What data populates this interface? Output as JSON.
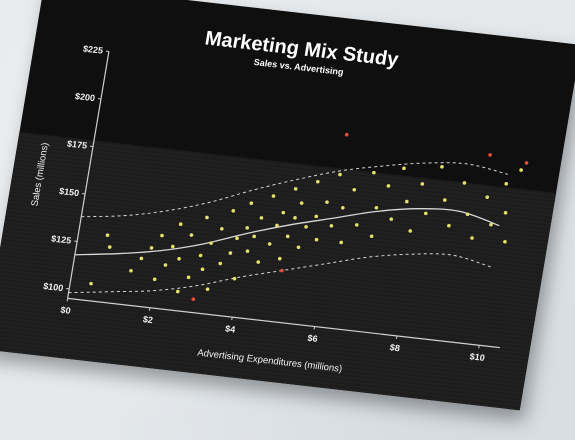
{
  "chart_data": {
    "type": "scatter",
    "title": "Marketing Mix Study",
    "subtitle": "Sales vs. Advertising",
    "xlabel": "Advertising Expenditures (millions)",
    "ylabel": "Sales (millions)",
    "xlim": [
      0,
      10.5
    ],
    "ylim": [
      95,
      225
    ],
    "x_ticks": [
      {
        "value": 0,
        "label": "$0"
      },
      {
        "value": 2,
        "label": "$2"
      },
      {
        "value": 4,
        "label": "$4"
      },
      {
        "value": 6,
        "label": "$6"
      },
      {
        "value": 8,
        "label": "$8"
      },
      {
        "value": 10,
        "label": "$10"
      }
    ],
    "y_ticks": [
      {
        "value": 100,
        "label": "$100"
      },
      {
        "value": 125,
        "label": "$125"
      },
      {
        "value": 150,
        "label": "$150"
      },
      {
        "value": 175,
        "label": "$175"
      },
      {
        "value": 200,
        "label": "$200"
      },
      {
        "value": 225,
        "label": "$225"
      }
    ],
    "grid": false,
    "colors": {
      "points": "#e6e06a",
      "outliers": "#e0503a",
      "fit": "#d8d8d8",
      "band": "#d8d8d8",
      "background": "#1c1c1c"
    },
    "fit_line": {
      "x": [
        0,
        1,
        2,
        3,
        4,
        5,
        6,
        7,
        8,
        9,
        10
      ],
      "y": [
        118,
        121,
        125,
        131,
        139,
        146,
        152,
        158,
        162,
        163,
        158
      ]
    },
    "upper_band": {
      "x": [
        0,
        1,
        2,
        3,
        4,
        5,
        6,
        7,
        8,
        9,
        10
      ],
      "y": [
        138,
        141,
        146,
        153,
        162,
        170,
        177,
        182,
        186,
        188,
        185
      ]
    },
    "lower_band": {
      "x": [
        0,
        1,
        2,
        3,
        4,
        5,
        6,
        7,
        8,
        9,
        10
      ],
      "y": [
        98,
        101,
        104,
        109,
        116,
        122,
        128,
        134,
        138,
        140,
        136
      ]
    },
    "points": [
      {
        "x": 0.5,
        "y": 104
      },
      {
        "x": 0.7,
        "y": 130
      },
      {
        "x": 0.8,
        "y": 124
      },
      {
        "x": 1.4,
        "y": 113
      },
      {
        "x": 1.6,
        "y": 120
      },
      {
        "x": 1.8,
        "y": 126
      },
      {
        "x": 2.0,
        "y": 110
      },
      {
        "x": 2.0,
        "y": 133
      },
      {
        "x": 2.2,
        "y": 118
      },
      {
        "x": 2.3,
        "y": 128
      },
      {
        "x": 2.4,
        "y": 140
      },
      {
        "x": 2.5,
        "y": 122
      },
      {
        "x": 2.6,
        "y": 105
      },
      {
        "x": 2.7,
        "y": 135
      },
      {
        "x": 2.8,
        "y": 113
      },
      {
        "x": 3.0,
        "y": 125
      },
      {
        "x": 3.0,
        "y": 145
      },
      {
        "x": 3.1,
        "y": 118
      },
      {
        "x": 3.2,
        "y": 132
      },
      {
        "x": 3.3,
        "y": 108
      },
      {
        "x": 3.4,
        "y": 140
      },
      {
        "x": 3.5,
        "y": 122
      },
      {
        "x": 3.6,
        "y": 150
      },
      {
        "x": 3.7,
        "y": 128
      },
      {
        "x": 3.8,
        "y": 136
      },
      {
        "x": 3.9,
        "y": 115
      },
      {
        "x": 4.0,
        "y": 142
      },
      {
        "x": 4.0,
        "y": 155
      },
      {
        "x": 4.1,
        "y": 130
      },
      {
        "x": 4.2,
        "y": 138
      },
      {
        "x": 4.3,
        "y": 148
      },
      {
        "x": 4.4,
        "y": 125
      },
      {
        "x": 4.5,
        "y": 160
      },
      {
        "x": 4.6,
        "y": 135
      },
      {
        "x": 4.7,
        "y": 145
      },
      {
        "x": 4.8,
        "y": 152
      },
      {
        "x": 4.9,
        "y": 128
      },
      {
        "x": 5.0,
        "y": 140
      },
      {
        "x": 5.0,
        "y": 165
      },
      {
        "x": 5.1,
        "y": 150
      },
      {
        "x": 5.2,
        "y": 158
      },
      {
        "x": 5.3,
        "y": 135
      },
      {
        "x": 5.4,
        "y": 146
      },
      {
        "x": 5.5,
        "y": 170
      },
      {
        "x": 5.6,
        "y": 152
      },
      {
        "x": 5.7,
        "y": 140
      },
      {
        "x": 5.8,
        "y": 160
      },
      {
        "x": 6.0,
        "y": 148
      },
      {
        "x": 6.0,
        "y": 175
      },
      {
        "x": 6.2,
        "y": 158
      },
      {
        "x": 6.3,
        "y": 140
      },
      {
        "x": 6.4,
        "y": 168
      },
      {
        "x": 6.6,
        "y": 150
      },
      {
        "x": 6.8,
        "y": 178
      },
      {
        "x": 7.0,
        "y": 160
      },
      {
        "x": 7.0,
        "y": 145
      },
      {
        "x": 7.2,
        "y": 172
      },
      {
        "x": 7.4,
        "y": 155
      },
      {
        "x": 7.5,
        "y": 182
      },
      {
        "x": 7.7,
        "y": 165
      },
      {
        "x": 7.9,
        "y": 150
      },
      {
        "x": 8.0,
        "y": 175
      },
      {
        "x": 8.2,
        "y": 160
      },
      {
        "x": 8.4,
        "y": 185
      },
      {
        "x": 8.6,
        "y": 168
      },
      {
        "x": 8.8,
        "y": 155
      },
      {
        "x": 9.0,
        "y": 178
      },
      {
        "x": 9.2,
        "y": 162
      },
      {
        "x": 9.4,
        "y": 150
      },
      {
        "x": 9.6,
        "y": 172
      },
      {
        "x": 9.8,
        "y": 158
      },
      {
        "x": 10.0,
        "y": 180
      },
      {
        "x": 10.1,
        "y": 165
      },
      {
        "x": 10.2,
        "y": 150
      },
      {
        "x": 10.3,
        "y": 188
      }
    ],
    "outliers": [
      {
        "x": 5.0,
        "y": 122
      },
      {
        "x": 6.0,
        "y": 196
      },
      {
        "x": 9.5,
        "y": 194
      },
      {
        "x": 10.4,
        "y": 192
      },
      {
        "x": 3.0,
        "y": 102
      }
    ]
  }
}
